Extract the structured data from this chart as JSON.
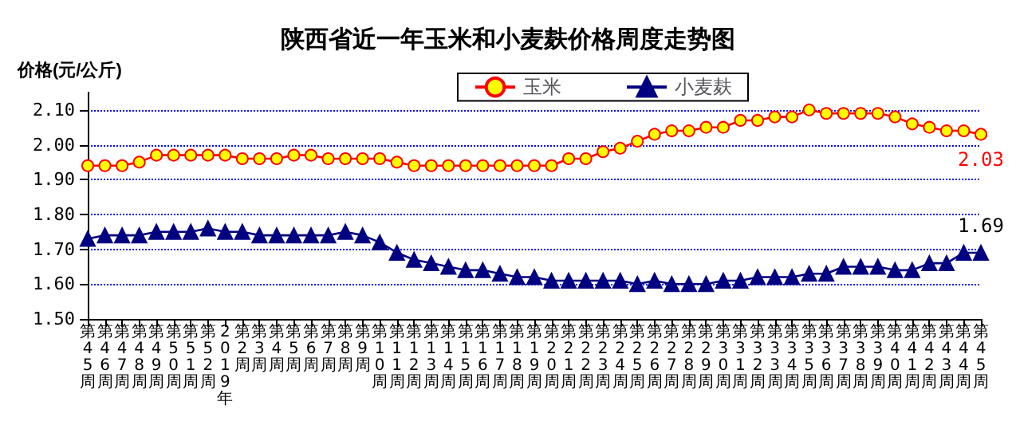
{
  "chart_data": {
    "type": "line",
    "title": "陕西省近一年玉米和小麦麸价格周度走势图",
    "ylabel": "价格(元/公斤)",
    "categories": [
      "第45周",
      "第46周",
      "第47周",
      "第48周",
      "第49周",
      "第50周",
      "第51周",
      "第52周",
      "2019年",
      "第2周",
      "第3周",
      "第4周",
      "第5周",
      "第6周",
      "第7周",
      "第8周",
      "第9周",
      "第10周",
      "第11周",
      "第12周",
      "第13周",
      "第14周",
      "第15周",
      "第16周",
      "第17周",
      "第18周",
      "第19周",
      "第20周",
      "第21周",
      "第22周",
      "第23周",
      "第24周",
      "第25周",
      "第26周",
      "第27周",
      "第28周",
      "第29周",
      "第30周",
      "第31周",
      "第32周",
      "第33周",
      "第34周",
      "第35周",
      "第36周",
      "第37周",
      "第38周",
      "第39周",
      "第40周",
      "第41周",
      "第42周",
      "第43周",
      "第44周",
      "第45周"
    ],
    "series": [
      {
        "name": "玉米",
        "color": "#ff0000",
        "marker": "circle",
        "values": [
          1.94,
          1.94,
          1.94,
          1.95,
          1.97,
          1.97,
          1.97,
          1.97,
          1.97,
          1.96,
          1.96,
          1.96,
          1.97,
          1.97,
          1.96,
          1.96,
          1.96,
          1.96,
          1.95,
          1.94,
          1.94,
          1.94,
          1.94,
          1.94,
          1.94,
          1.94,
          1.94,
          1.94,
          1.96,
          1.96,
          1.98,
          1.99,
          2.01,
          2.03,
          2.04,
          2.04,
          2.05,
          2.05,
          2.07,
          2.07,
          2.08,
          2.08,
          2.1,
          2.09,
          2.09,
          2.09,
          2.09,
          2.08,
          2.06,
          2.05,
          2.04,
          2.04,
          2.03
        ],
        "value_labels": [
          null,
          null,
          null,
          null,
          null,
          null,
          null,
          null,
          null,
          null,
          null,
          null,
          null,
          null,
          null,
          null,
          null,
          null,
          null,
          null,
          null,
          null,
          null,
          null,
          null,
          null,
          null,
          null,
          null,
          null,
          null,
          null,
          null,
          null,
          null,
          null,
          null,
          null,
          null,
          null,
          null,
          null,
          null,
          null,
          null,
          null,
          null,
          null,
          null,
          null,
          null,
          null,
          "2.03"
        ]
      },
      {
        "name": "小麦麸",
        "color": "#000080",
        "marker": "triangle",
        "values": [
          1.73,
          1.74,
          1.74,
          1.74,
          1.75,
          1.75,
          1.75,
          1.76,
          1.75,
          1.75,
          1.74,
          1.74,
          1.74,
          1.74,
          1.74,
          1.75,
          1.74,
          1.72,
          1.69,
          1.67,
          1.66,
          1.65,
          1.64,
          1.64,
          1.63,
          1.62,
          1.62,
          1.61,
          1.61,
          1.61,
          1.61,
          1.61,
          1.6,
          1.61,
          1.6,
          1.6,
          1.6,
          1.61,
          1.61,
          1.62,
          1.62,
          1.62,
          1.63,
          1.63,
          1.65,
          1.65,
          1.65,
          1.64,
          1.64,
          1.66,
          1.66,
          1.69,
          1.69
        ],
        "value_labels": [
          null,
          null,
          null,
          null,
          null,
          null,
          null,
          null,
          null,
          null,
          null,
          null,
          null,
          null,
          null,
          null,
          null,
          null,
          null,
          null,
          null,
          null,
          null,
          null,
          null,
          null,
          null,
          null,
          null,
          null,
          null,
          null,
          null,
          null,
          null,
          null,
          null,
          null,
          null,
          null,
          null,
          null,
          null,
          null,
          null,
          null,
          null,
          null,
          null,
          null,
          null,
          null,
          "1.69"
        ]
      }
    ],
    "ylim": [
      1.5,
      2.15
    ],
    "yticks": [
      {
        "value": 1.5,
        "label": "1.50"
      },
      {
        "value": 1.6,
        "label": "1.60"
      },
      {
        "value": 1.7,
        "label": "1.70"
      },
      {
        "value": 1.8,
        "label": "1.80"
      },
      {
        "value": 1.9,
        "label": "1.90"
      },
      {
        "value": 2.0,
        "label": "2.00"
      },
      {
        "value": 2.1,
        "label": "2.10"
      }
    ],
    "grid": "y",
    "legend": "top right",
    "line_style": "solid"
  }
}
